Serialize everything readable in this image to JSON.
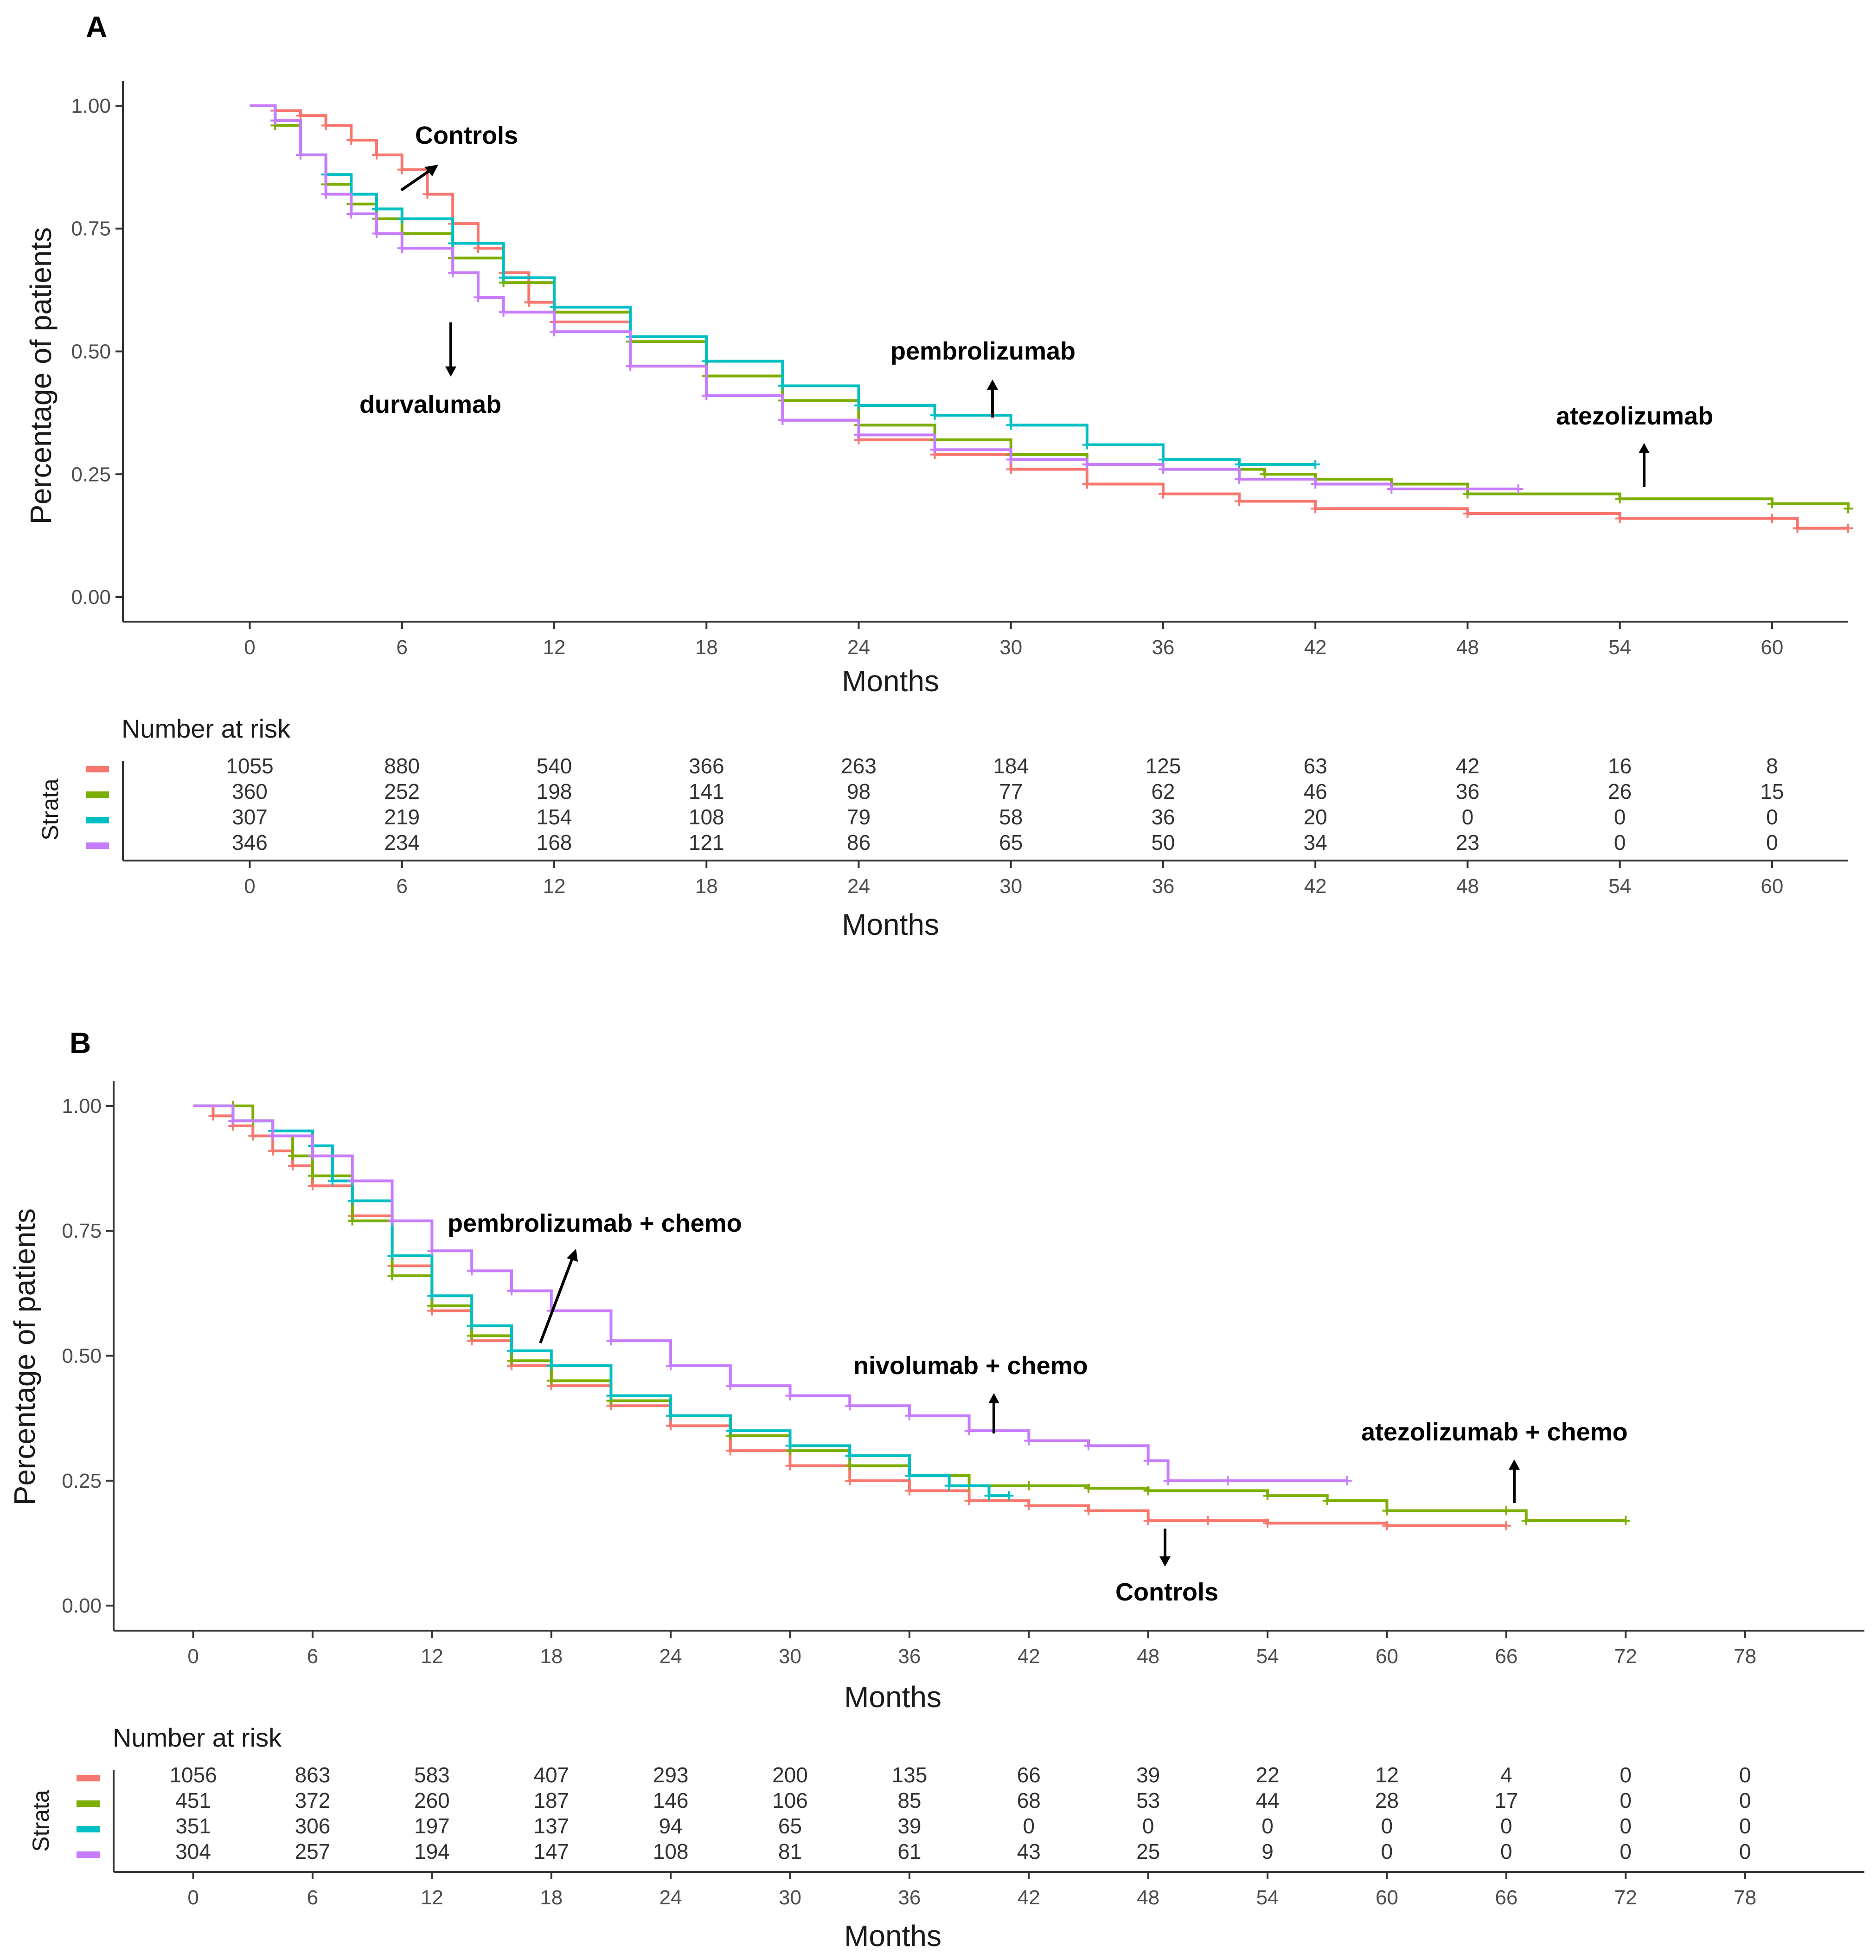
{
  "chart_data": [
    {
      "type": "line",
      "panel": "A",
      "xlabel": "Months",
      "ylabel": "Percentage of patients",
      "xlim": [
        -5,
        63
      ],
      "ylim": [
        -0.05,
        1.05
      ],
      "x_ticks": [
        0,
        6,
        12,
        18,
        24,
        30,
        36,
        42,
        48,
        54,
        60
      ],
      "y_ticks": [
        0,
        0.25,
        0.5,
        0.75,
        1.0
      ],
      "y_tick_labels": [
        "0.00",
        "0.25",
        "0.50",
        "0.75",
        "1.00"
      ],
      "series": [
        {
          "color": "#F8766D",
          "points": [
            [
              0,
              1.0
            ],
            [
              1,
              0.99
            ],
            [
              2,
              0.98
            ],
            [
              3,
              0.96
            ],
            [
              4,
              0.93
            ],
            [
              5,
              0.9
            ],
            [
              6,
              0.87
            ],
            [
              7,
              0.82
            ],
            [
              8,
              0.76
            ],
            [
              9,
              0.71
            ],
            [
              10,
              0.66
            ],
            [
              11,
              0.6
            ],
            [
              12,
              0.56
            ],
            [
              15,
              0.47
            ],
            [
              18,
              0.41
            ],
            [
              21,
              0.36
            ],
            [
              24,
              0.32
            ],
            [
              27,
              0.29
            ],
            [
              30,
              0.26
            ],
            [
              33,
              0.23
            ],
            [
              36,
              0.21
            ],
            [
              39,
              0.195
            ],
            [
              42,
              0.18
            ],
            [
              48,
              0.17
            ],
            [
              54,
              0.16
            ],
            [
              60,
              0.16
            ],
            [
              61,
              0.14
            ],
            [
              63,
              0.14
            ]
          ]
        },
        {
          "color": "#7CAE00",
          "points": [
            [
              0,
              1.0
            ],
            [
              1,
              0.96
            ],
            [
              2,
              0.9
            ],
            [
              3,
              0.84
            ],
            [
              4,
              0.8
            ],
            [
              5,
              0.77
            ],
            [
              6,
              0.74
            ],
            [
              8,
              0.69
            ],
            [
              10,
              0.64
            ],
            [
              12,
              0.58
            ],
            [
              15,
              0.52
            ],
            [
              18,
              0.45
            ],
            [
              21,
              0.4
            ],
            [
              24,
              0.35
            ],
            [
              27,
              0.32
            ],
            [
              30,
              0.29
            ],
            [
              33,
              0.27
            ],
            [
              36,
              0.26
            ],
            [
              40,
              0.25
            ],
            [
              42,
              0.24
            ],
            [
              45,
              0.23
            ],
            [
              48,
              0.21
            ],
            [
              54,
              0.2
            ],
            [
              60,
              0.19
            ],
            [
              63,
              0.18
            ]
          ]
        },
        {
          "color": "#00BFC4",
          "points": [
            [
              0,
              1.0
            ],
            [
              1,
              0.97
            ],
            [
              2,
              0.9
            ],
            [
              3,
              0.86
            ],
            [
              4,
              0.82
            ],
            [
              5,
              0.79
            ],
            [
              6,
              0.77
            ],
            [
              8,
              0.72
            ],
            [
              10,
              0.65
            ],
            [
              12,
              0.59
            ],
            [
              15,
              0.53
            ],
            [
              18,
              0.48
            ],
            [
              21,
              0.43
            ],
            [
              24,
              0.39
            ],
            [
              27,
              0.37
            ],
            [
              30,
              0.35
            ],
            [
              33,
              0.31
            ],
            [
              36,
              0.28
            ],
            [
              39,
              0.27
            ],
            [
              42,
              0.27
            ]
          ]
        },
        {
          "color": "#C77CFF",
          "points": [
            [
              0,
              1.0
            ],
            [
              1,
              0.97
            ],
            [
              2,
              0.9
            ],
            [
              3,
              0.82
            ],
            [
              4,
              0.78
            ],
            [
              5,
              0.74
            ],
            [
              6,
              0.71
            ],
            [
              8,
              0.66
            ],
            [
              9,
              0.61
            ],
            [
              10,
              0.58
            ],
            [
              12,
              0.54
            ],
            [
              15,
              0.47
            ],
            [
              18,
              0.41
            ],
            [
              21,
              0.36
            ],
            [
              24,
              0.33
            ],
            [
              27,
              0.3
            ],
            [
              30,
              0.28
            ],
            [
              33,
              0.27
            ],
            [
              36,
              0.26
            ],
            [
              39,
              0.24
            ],
            [
              42,
              0.23
            ],
            [
              45,
              0.22
            ],
            [
              50,
              0.22
            ]
          ]
        }
      ],
      "annotations": [
        "Controls",
        "durvalumab",
        "pembrolizumab",
        "atezolizumab"
      ],
      "risk_table": {
        "title": "Number at risk",
        "strata_label": "Strata",
        "times": [
          0,
          6,
          12,
          18,
          24,
          30,
          36,
          42,
          48,
          54,
          60
        ],
        "rows": [
          {
            "color": "#F8766D",
            "values": [
              "1055",
              "880",
              "540",
              "366",
              "263",
              "184",
              "125",
              "63",
              "42",
              "16",
              "8"
            ]
          },
          {
            "color": "#7CAE00",
            "values": [
              "360",
              "252",
              "198",
              "141",
              "98",
              "77",
              "62",
              "46",
              "36",
              "26",
              "15"
            ]
          },
          {
            "color": "#00BFC4",
            "values": [
              "307",
              "219",
              "154",
              "108",
              "79",
              "58",
              "36",
              "20",
              "0",
              "0",
              "0"
            ]
          },
          {
            "color": "#C77CFF",
            "values": [
              "346",
              "234",
              "168",
              "121",
              "86",
              "65",
              "50",
              "34",
              "23",
              "0",
              "0"
            ]
          }
        ],
        "xlabel": "Months"
      }
    },
    {
      "type": "line",
      "panel": "B",
      "xlabel": "Months",
      "ylabel": "Percentage of patients",
      "xlim": [
        -4,
        84
      ],
      "ylim": [
        -0.05,
        1.05
      ],
      "x_ticks": [
        0,
        6,
        12,
        18,
        24,
        30,
        36,
        42,
        48,
        54,
        60,
        66,
        72,
        78
      ],
      "y_ticks": [
        0,
        0.25,
        0.5,
        0.75,
        1.0
      ],
      "y_tick_labels": [
        "0.00",
        "0.25",
        "0.50",
        "0.75",
        "1.00"
      ],
      "series": [
        {
          "color": "#F8766D",
          "points": [
            [
              0,
              1.0
            ],
            [
              1,
              0.98
            ],
            [
              2,
              0.96
            ],
            [
              3,
              0.94
            ],
            [
              4,
              0.91
            ],
            [
              5,
              0.88
            ],
            [
              6,
              0.84
            ],
            [
              8,
              0.78
            ],
            [
              10,
              0.68
            ],
            [
              12,
              0.59
            ],
            [
              14,
              0.53
            ],
            [
              16,
              0.48
            ],
            [
              18,
              0.44
            ],
            [
              21,
              0.4
            ],
            [
              24,
              0.36
            ],
            [
              27,
              0.31
            ],
            [
              30,
              0.28
            ],
            [
              33,
              0.25
            ],
            [
              36,
              0.23
            ],
            [
              39,
              0.21
            ],
            [
              42,
              0.2
            ],
            [
              45,
              0.19
            ],
            [
              48,
              0.17
            ],
            [
              51,
              0.17
            ],
            [
              54,
              0.165
            ],
            [
              60,
              0.16
            ],
            [
              66,
              0.16
            ]
          ]
        },
        {
          "color": "#7CAE00",
          "points": [
            [
              0,
              1.0
            ],
            [
              2,
              1.0
            ],
            [
              3,
              0.97
            ],
            [
              4,
              0.94
            ],
            [
              5,
              0.9
            ],
            [
              6,
              0.86
            ],
            [
              8,
              0.77
            ],
            [
              10,
              0.66
            ],
            [
              12,
              0.6
            ],
            [
              14,
              0.54
            ],
            [
              16,
              0.49
            ],
            [
              18,
              0.45
            ],
            [
              21,
              0.41
            ],
            [
              24,
              0.38
            ],
            [
              27,
              0.34
            ],
            [
              30,
              0.31
            ],
            [
              33,
              0.28
            ],
            [
              36,
              0.26
            ],
            [
              39,
              0.24
            ],
            [
              42,
              0.24
            ],
            [
              45,
              0.235
            ],
            [
              48,
              0.23
            ],
            [
              54,
              0.22
            ],
            [
              57,
              0.21
            ],
            [
              60,
              0.19
            ],
            [
              66,
              0.19
            ],
            [
              67,
              0.17
            ],
            [
              72,
              0.17
            ]
          ]
        },
        {
          "color": "#00BFC4",
          "points": [
            [
              0,
              1.0
            ],
            [
              2,
              0.97
            ],
            [
              4,
              0.95
            ],
            [
              6,
              0.92
            ],
            [
              7,
              0.85
            ],
            [
              8,
              0.81
            ],
            [
              10,
              0.7
            ],
            [
              12,
              0.62
            ],
            [
              14,
              0.56
            ],
            [
              16,
              0.51
            ],
            [
              18,
              0.48
            ],
            [
              21,
              0.42
            ],
            [
              24,
              0.38
            ],
            [
              27,
              0.35
            ],
            [
              30,
              0.32
            ],
            [
              33,
              0.3
            ],
            [
              36,
              0.26
            ],
            [
              38,
              0.24
            ],
            [
              40,
              0.22
            ],
            [
              41,
              0.22
            ]
          ]
        },
        {
          "color": "#C77CFF",
          "points": [
            [
              0,
              1.0
            ],
            [
              2,
              0.97
            ],
            [
              4,
              0.94
            ],
            [
              6,
              0.9
            ],
            [
              8,
              0.85
            ],
            [
              10,
              0.77
            ],
            [
              12,
              0.71
            ],
            [
              14,
              0.67
            ],
            [
              16,
              0.63
            ],
            [
              18,
              0.59
            ],
            [
              21,
              0.53
            ],
            [
              24,
              0.48
            ],
            [
              27,
              0.44
            ],
            [
              30,
              0.42
            ],
            [
              33,
              0.4
            ],
            [
              36,
              0.38
            ],
            [
              39,
              0.35
            ],
            [
              42,
              0.33
            ],
            [
              45,
              0.32
            ],
            [
              48,
              0.29
            ],
            [
              49,
              0.25
            ],
            [
              52,
              0.25
            ],
            [
              58,
              0.25
            ]
          ]
        }
      ],
      "annotations": [
        "pembrolizumab  + chemo",
        "nivolumab + chemo",
        "atezolizumab + chemo",
        "Controls"
      ],
      "risk_table": {
        "title": "Number at risk",
        "strata_label": "Strata",
        "times": [
          0,
          6,
          12,
          18,
          24,
          30,
          36,
          42,
          48,
          54,
          60,
          66,
          72,
          78
        ],
        "rows": [
          {
            "color": "#F8766D",
            "values": [
              "1056",
              "863",
              "583",
              "407",
              "293",
              "200",
              "135",
              "66",
              "39",
              "22",
              "12",
              "4",
              "0",
              "0"
            ]
          },
          {
            "color": "#7CAE00",
            "values": [
              "451",
              "372",
              "260",
              "187",
              "146",
              "106",
              "85",
              "68",
              "53",
              "44",
              "28",
              "17",
              "0",
              "0"
            ]
          },
          {
            "color": "#00BFC4",
            "values": [
              "351",
              "306",
              "197",
              "137",
              "94",
              "65",
              "39",
              "0",
              "0",
              "0",
              "0",
              "0",
              "0",
              "0"
            ]
          },
          {
            "color": "#C77CFF",
            "values": [
              "304",
              "257",
              "194",
              "147",
              "108",
              "81",
              "61",
              "43",
              "25",
              "9",
              "0",
              "0",
              "0",
              "0"
            ]
          }
        ],
        "xlabel": "Months"
      }
    }
  ]
}
